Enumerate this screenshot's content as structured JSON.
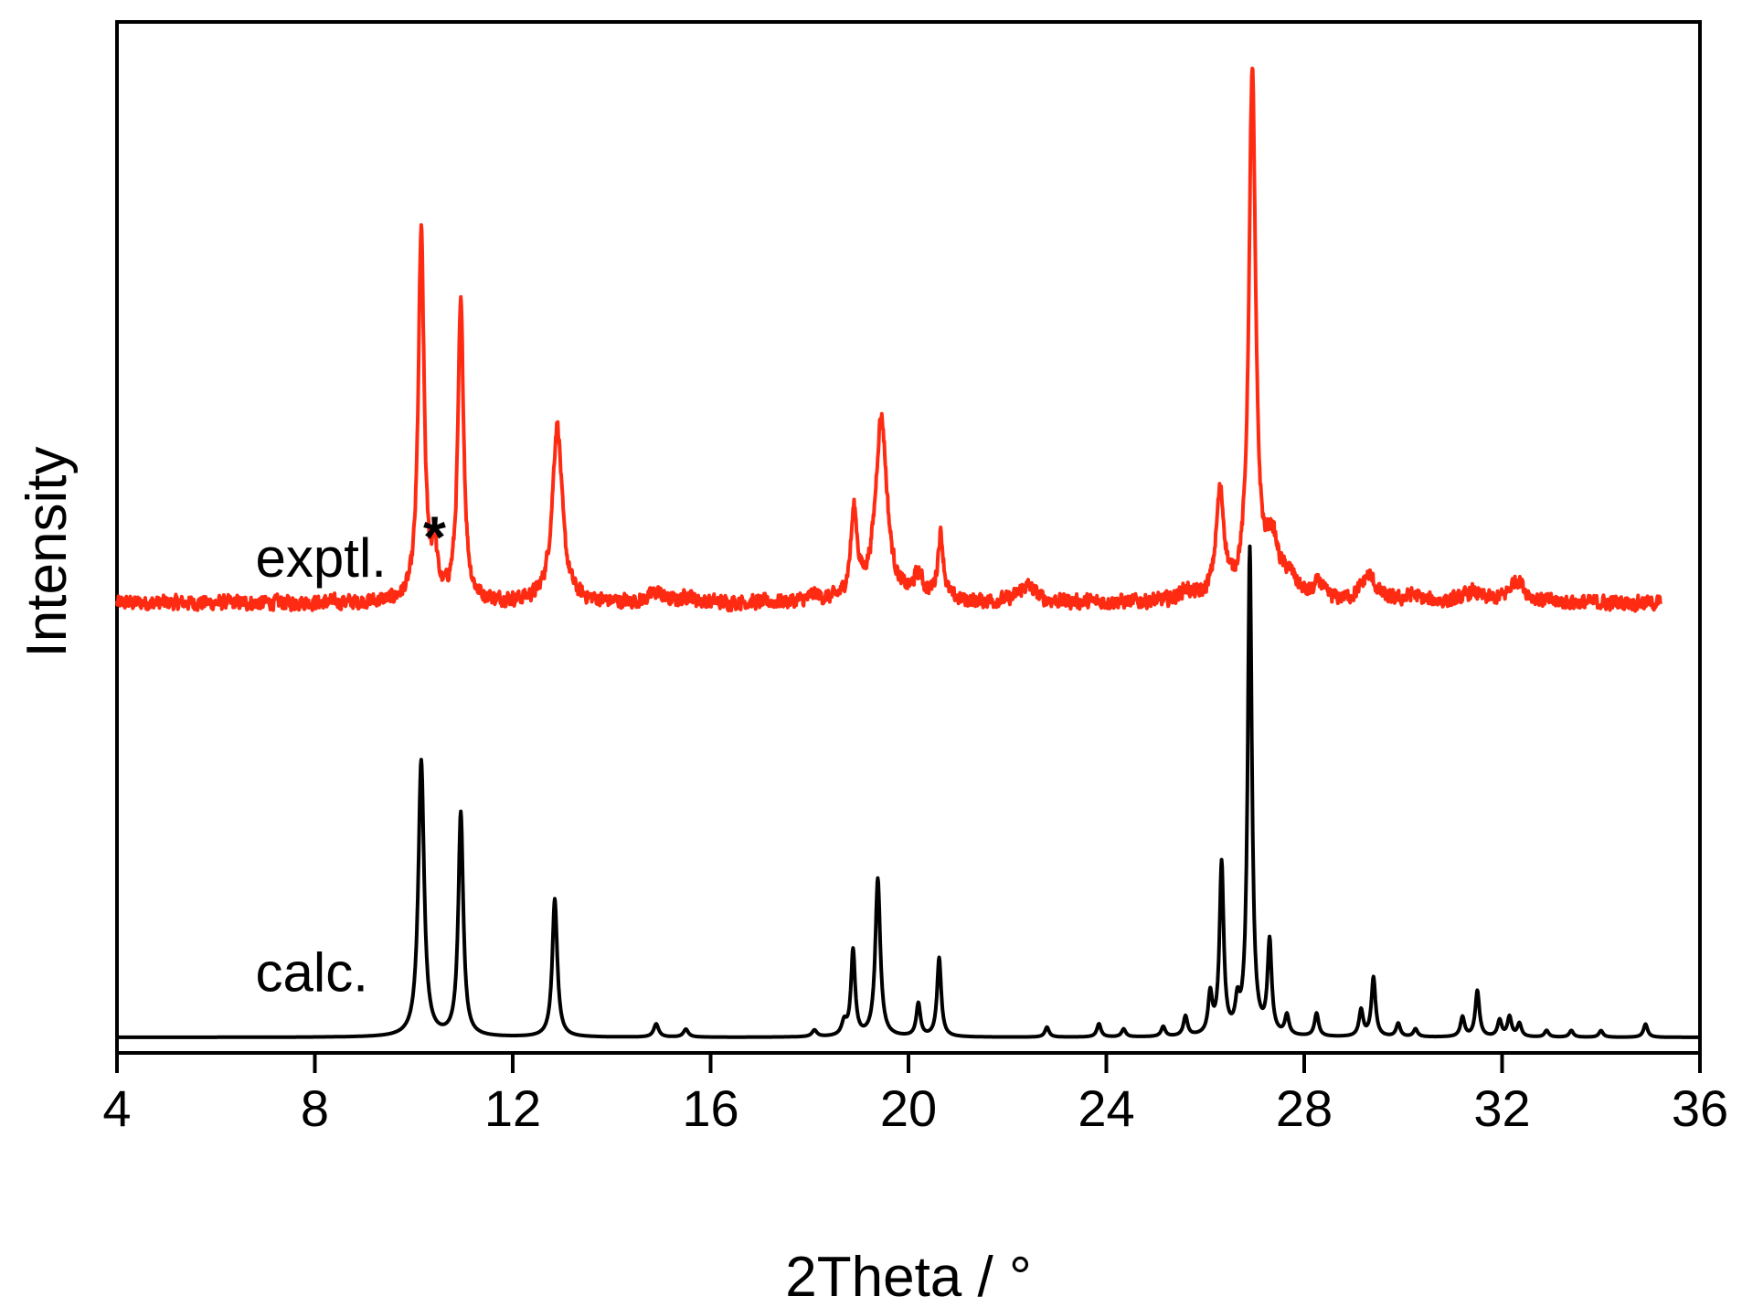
{
  "chart_data": {
    "type": "line",
    "xlabel": "2Theta / °",
    "ylabel": "Intensity",
    "xlim": [
      4,
      36
    ],
    "ylim": [
      0,
      1.5
    ],
    "x_ticks": [
      "4",
      "8",
      "12",
      "16",
      "20",
      "24",
      "28",
      "32",
      "36"
    ],
    "grid": false,
    "legend": "none",
    "colors": {
      "exptl": "#ff2a12",
      "calc": "#000000",
      "axes": "#000000"
    },
    "series": [
      {
        "name": "exptl.",
        "offset": 0.66,
        "x_range": [
          4,
          35.2
        ],
        "noise": 0.015,
        "peaks": [
          [
            10.15,
            0.56,
            0.07
          ],
          [
            10.42,
            0.07,
            0.06
          ],
          [
            10.95,
            0.45,
            0.07
          ],
          [
            12.9,
            0.27,
            0.12
          ],
          [
            14.9,
            0.015,
            0.15
          ],
          [
            15.55,
            0.01,
            0.12
          ],
          [
            18.1,
            0.01,
            0.12
          ],
          [
            18.9,
            0.13,
            0.08
          ],
          [
            19.45,
            0.28,
            0.14
          ],
          [
            20.2,
            0.035,
            0.12
          ],
          [
            20.65,
            0.1,
            0.07
          ],
          [
            22.4,
            0.025,
            0.2
          ],
          [
            25.6,
            0.015,
            0.15
          ],
          [
            26.3,
            0.16,
            0.1
          ],
          [
            26.95,
            0.8,
            0.08
          ],
          [
            27.35,
            0.08,
            0.15
          ],
          [
            27.7,
            0.03,
            0.2
          ],
          [
            28.3,
            0.025,
            0.1
          ],
          [
            29.3,
            0.04,
            0.18
          ],
          [
            30.2,
            0.01,
            0.15
          ],
          [
            31.4,
            0.015,
            0.2
          ],
          [
            32.3,
            0.035,
            0.18
          ]
        ]
      },
      {
        "name": "calc.",
        "offset": 0,
        "x_range": [
          4,
          36
        ],
        "noise": 0,
        "peaks": [
          [
            10.15,
            0.42,
            0.07
          ],
          [
            10.95,
            0.34,
            0.06
          ],
          [
            12.85,
            0.21,
            0.06
          ],
          [
            14.9,
            0.02,
            0.06
          ],
          [
            15.5,
            0.012,
            0.06
          ],
          [
            18.1,
            0.01,
            0.06
          ],
          [
            18.7,
            0.02,
            0.06
          ],
          [
            18.88,
            0.13,
            0.05
          ],
          [
            19.38,
            0.24,
            0.06
          ],
          [
            20.2,
            0.05,
            0.05
          ],
          [
            20.62,
            0.12,
            0.05
          ],
          [
            22.8,
            0.015,
            0.05
          ],
          [
            23.85,
            0.02,
            0.05
          ],
          [
            24.35,
            0.012,
            0.05
          ],
          [
            25.15,
            0.015,
            0.05
          ],
          [
            25.6,
            0.03,
            0.05
          ],
          [
            26.1,
            0.06,
            0.05
          ],
          [
            26.33,
            0.26,
            0.05
          ],
          [
            26.65,
            0.04,
            0.05
          ],
          [
            26.9,
            0.74,
            0.05
          ],
          [
            27.3,
            0.14,
            0.05
          ],
          [
            27.65,
            0.03,
            0.05
          ],
          [
            28.25,
            0.035,
            0.05
          ],
          [
            29.15,
            0.04,
            0.05
          ],
          [
            29.4,
            0.09,
            0.05
          ],
          [
            29.9,
            0.02,
            0.05
          ],
          [
            30.25,
            0.012,
            0.05
          ],
          [
            31.2,
            0.03,
            0.05
          ],
          [
            31.5,
            0.07,
            0.05
          ],
          [
            31.95,
            0.025,
            0.05
          ],
          [
            32.15,
            0.03,
            0.05
          ],
          [
            32.35,
            0.02,
            0.05
          ],
          [
            32.9,
            0.01,
            0.05
          ],
          [
            33.4,
            0.01,
            0.05
          ],
          [
            34.0,
            0.01,
            0.05
          ],
          [
            34.9,
            0.02,
            0.05
          ]
        ]
      }
    ],
    "annotations": [
      {
        "text": "exptl.",
        "x": 6.8,
        "y": 0.7
      },
      {
        "text": "calc.",
        "x": 6.8,
        "y": 0.07
      },
      {
        "text": "*",
        "x": 10.42,
        "y": 0.73
      }
    ]
  }
}
